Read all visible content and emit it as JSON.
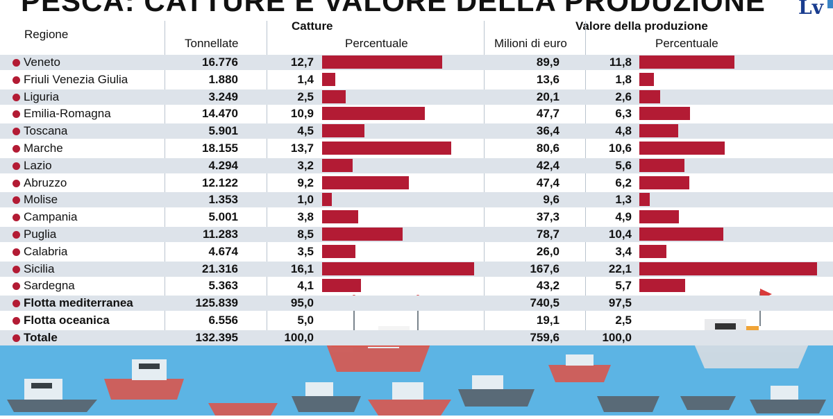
{
  "title": "PESCA: CATTURE E VALORE DELLA PRODUZIONE",
  "logo": "Lv",
  "headers": {
    "region": "Regione",
    "catture": "Catture",
    "tonnellate": "Tonnellate",
    "percentuale1": "Percentuale",
    "valore": "Valore della produzione",
    "milioni": "Milioni di euro",
    "percentuale2": "Percentuale"
  },
  "colors": {
    "bar": "#b31b34",
    "band": "#dde3ea",
    "sea": "#5cb4e4"
  },
  "chart_data": {
    "type": "table",
    "regions": [
      "Veneto",
      "Friuli Venezia Giulia",
      "Liguria",
      "Emilia-Romagna",
      "Toscana",
      "Marche",
      "Lazio",
      "Abruzzo",
      "Molise",
      "Campania",
      "Puglia",
      "Calabria",
      "Sicilia",
      "Sardegna"
    ],
    "tonnellate": [
      "16.776",
      "1.880",
      "3.249",
      "14.470",
      "5.901",
      "18.155",
      "4.294",
      "12.122",
      "1.353",
      "5.001",
      "11.283",
      "4.674",
      "21.316",
      "5.363"
    ],
    "catture_pct": [
      "12,7",
      "1,4",
      "2,5",
      "10,9",
      "4,5",
      "13,7",
      "3,2",
      "9,2",
      "1,0",
      "3,8",
      "8,5",
      "3,5",
      "16,1",
      "4,1"
    ],
    "catture_pct_values": [
      12.7,
      1.4,
      2.5,
      10.9,
      4.5,
      13.7,
      3.2,
      9.2,
      1.0,
      3.8,
      8.5,
      3.5,
      16.1,
      4.1
    ],
    "milioni": [
      "89,9",
      "13,6",
      "20,1",
      "47,7",
      "36,4",
      "80,6",
      "42,4",
      "47,4",
      "9,6",
      "37,3",
      "78,7",
      "26,0",
      "167,6",
      "43,2"
    ],
    "valore_pct": [
      "11,8",
      "1,8",
      "2,6",
      "6,3",
      "4,8",
      "10,6",
      "5,6",
      "6,2",
      "1,3",
      "4,9",
      "10,4",
      "3,4",
      "22,1",
      "5,7"
    ],
    "valore_pct_values": [
      11.8,
      1.8,
      2.6,
      6.3,
      4.8,
      10.6,
      5.6,
      6.2,
      1.3,
      4.9,
      10.4,
      3.4,
      22.1,
      5.7
    ],
    "totals": [
      {
        "label": "Flotta mediterranea",
        "tonnellate": "125.839",
        "catture_pct": "95,0",
        "milioni": "740,5",
        "valore_pct": "97,5"
      },
      {
        "label": "Flotta oceanica",
        "tonnellate": "6.556",
        "catture_pct": "5,0",
        "milioni": "19,1",
        "valore_pct": "2,5"
      },
      {
        "label": "Totale",
        "tonnellate": "132.395",
        "catture_pct": "100,0",
        "milioni": "759,6",
        "valore_pct": "100,0"
      }
    ]
  }
}
